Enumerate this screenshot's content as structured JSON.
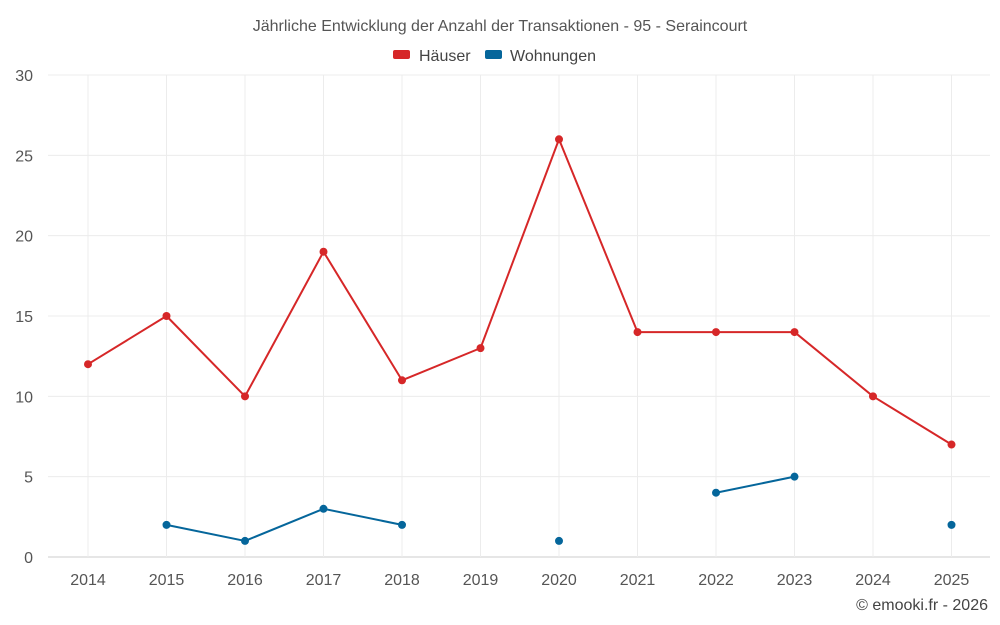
{
  "chart_data": {
    "type": "line",
    "title": "Jährliche Entwicklung der Anzahl der Transaktionen - 95 - Seraincourt",
    "categories": [
      "2014",
      "2015",
      "2016",
      "2017",
      "2018",
      "2019",
      "2020",
      "2021",
      "2022",
      "2023",
      "2024",
      "2025"
    ],
    "ylim": [
      0,
      30
    ],
    "yticks": [
      0,
      5,
      10,
      15,
      20,
      25,
      30
    ],
    "grid": true,
    "legend_position": "top-center",
    "series": [
      {
        "name": "Häuser",
        "color": "#d62728",
        "values": [
          12,
          15,
          10,
          19,
          11,
          13,
          26,
          14,
          14,
          14,
          10,
          7
        ]
      },
      {
        "name": "Wohnungen",
        "color": "#05669b",
        "values": [
          null,
          2,
          1,
          3,
          2,
          null,
          1,
          null,
          4,
          5,
          null,
          2
        ]
      }
    ]
  },
  "credit": "© emooki.fr - 2026"
}
